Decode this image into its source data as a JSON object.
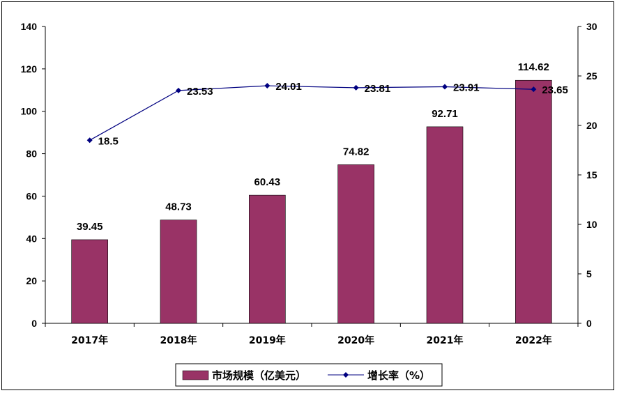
{
  "chart_data": {
    "type": "bar+line",
    "categories": [
      "2017年",
      "2018年",
      "2019年",
      "2020年",
      "2021年",
      "2022年"
    ],
    "series": [
      {
        "name": "市场规模（亿美元）",
        "type": "bar",
        "axis": "left",
        "color": "#993366",
        "values": [
          39.45,
          48.73,
          60.43,
          74.82,
          92.71,
          114.62
        ],
        "labels": [
          "39.45",
          "48.73",
          "60.43",
          "74.82",
          "92.71",
          "114.62"
        ]
      },
      {
        "name": "增长率（%）",
        "type": "line",
        "axis": "right",
        "color": "#000080",
        "values": [
          18.5,
          23.53,
          24.01,
          23.81,
          23.91,
          23.65
        ],
        "labels": [
          "18.5",
          "23.53",
          "24.01",
          "23.81",
          "23.91",
          "23.65"
        ]
      }
    ],
    "y_left": {
      "min": 0,
      "max": 140,
      "ticks": [
        "0",
        "20",
        "40",
        "60",
        "80",
        "100",
        "120",
        "140"
      ]
    },
    "y_right": {
      "min": 0,
      "max": 30,
      "ticks": [
        "0",
        "5",
        "10",
        "15",
        "20",
        "25",
        "30"
      ]
    },
    "grid": false,
    "legend_position": "bottom"
  }
}
